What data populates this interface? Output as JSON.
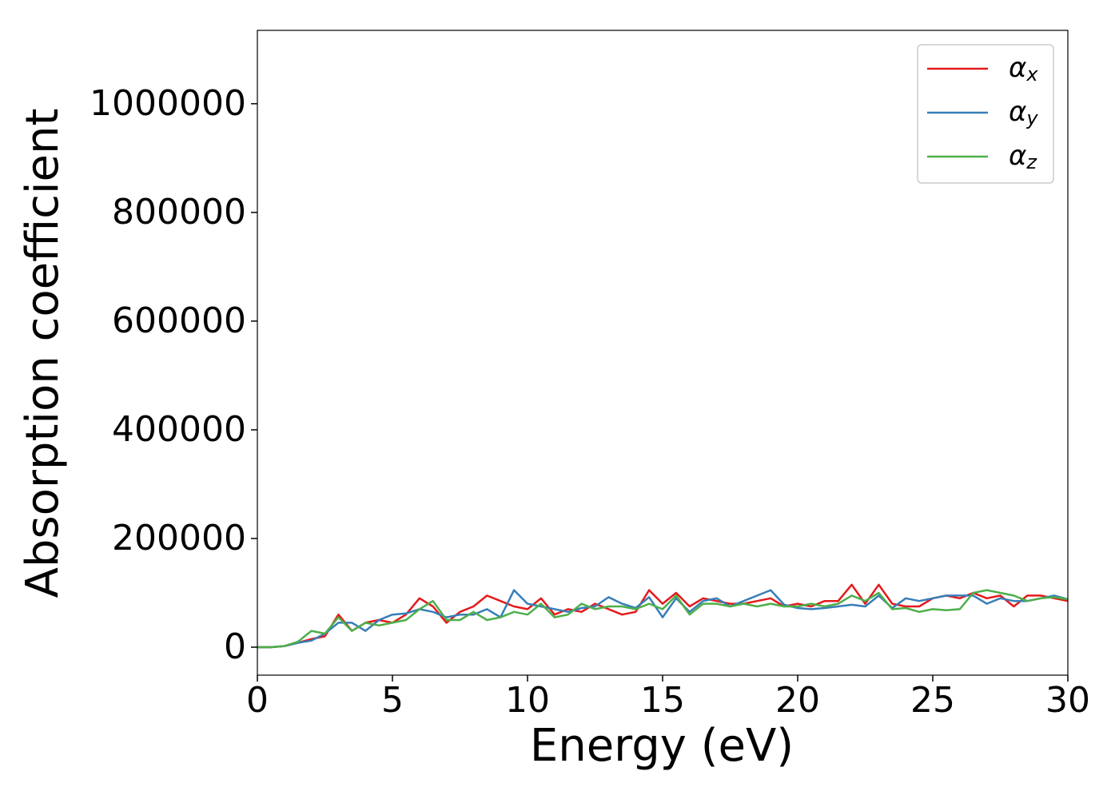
{
  "chart_data": {
    "type": "line",
    "xlabel": "Energy (eV)",
    "ylabel": "Absorption coefficient",
    "x": [
      0,
      0.5,
      1,
      1.5,
      2,
      2.5,
      3,
      3.5,
      4,
      4.5,
      5,
      5.5,
      6,
      6.5,
      7,
      7.5,
      8,
      8.5,
      9,
      9.5,
      10,
      10.5,
      11,
      11.5,
      12,
      12.5,
      13,
      13.5,
      14,
      14.5,
      15,
      15.5,
      16,
      16.5,
      17,
      17.5,
      18,
      18.5,
      19,
      19.5,
      20,
      20.5,
      21,
      21.5,
      22,
      22.5,
      23,
      23.5,
      24,
      24.5,
      25,
      25.5,
      26,
      26.5,
      27,
      27.5,
      28,
      28.5,
      29,
      29.5,
      30
    ],
    "series": [
      {
        "name": "αx",
        "color": "#e41a1c",
        "values": [
          0,
          0,
          2000,
          8000,
          15000,
          20000,
          60000,
          30000,
          45000,
          50000,
          45000,
          60000,
          90000,
          75000,
          45000,
          65000,
          75000,
          95000,
          85000,
          75000,
          70000,
          90000,
          60000,
          70000,
          65000,
          80000,
          70000,
          60000,
          65000,
          105000,
          80000,
          100000,
          75000,
          90000,
          85000,
          80000,
          80000,
          85000,
          90000,
          75000,
          80000,
          75000,
          85000,
          85000,
          115000,
          80000,
          115000,
          80000,
          75000,
          75000,
          90000,
          95000,
          90000,
          100000,
          90000,
          95000,
          75000,
          95000,
          95000,
          90000,
          85000
        ]
      },
      {
        "name": "αy",
        "color": "#377eb8",
        "values": [
          0,
          0,
          2000,
          8000,
          12000,
          25000,
          45000,
          45000,
          30000,
          50000,
          60000,
          62000,
          70000,
          65000,
          55000,
          60000,
          60000,
          70000,
          55000,
          105000,
          80000,
          75000,
          70000,
          65000,
          72000,
          75000,
          92000,
          80000,
          72000,
          92000,
          55000,
          90000,
          65000,
          85000,
          90000,
          75000,
          85000,
          95000,
          105000,
          78000,
          72000,
          70000,
          72000,
          75000,
          78000,
          75000,
          95000,
          72000,
          90000,
          85000,
          90000,
          95000,
          95000,
          95000,
          80000,
          90000,
          85000,
          85000,
          90000,
          95000,
          88000
        ]
      },
      {
        "name": "αz",
        "color": "#4daf4a",
        "values": [
          0,
          0,
          2000,
          10000,
          30000,
          25000,
          55000,
          30000,
          45000,
          40000,
          45000,
          50000,
          70000,
          85000,
          50000,
          50000,
          65000,
          50000,
          55000,
          65000,
          60000,
          80000,
          55000,
          60000,
          80000,
          70000,
          75000,
          75000,
          70000,
          80000,
          70000,
          95000,
          60000,
          80000,
          80000,
          75000,
          80000,
          75000,
          80000,
          75000,
          75000,
          80000,
          75000,
          80000,
          95000,
          85000,
          100000,
          70000,
          72000,
          65000,
          70000,
          68000,
          70000,
          100000,
          105000,
          100000,
          95000,
          85000,
          90000,
          92000,
          88000
        ]
      }
    ],
    "xlim": [
      0,
      30
    ],
    "xticks": [
      0,
      5,
      10,
      15,
      20,
      25,
      30
    ],
    "ylim": [
      -51500,
      1135000
    ],
    "yticks": [
      0,
      200000,
      400000,
      600000,
      800000,
      1000000
    ],
    "legend": "upper right"
  }
}
